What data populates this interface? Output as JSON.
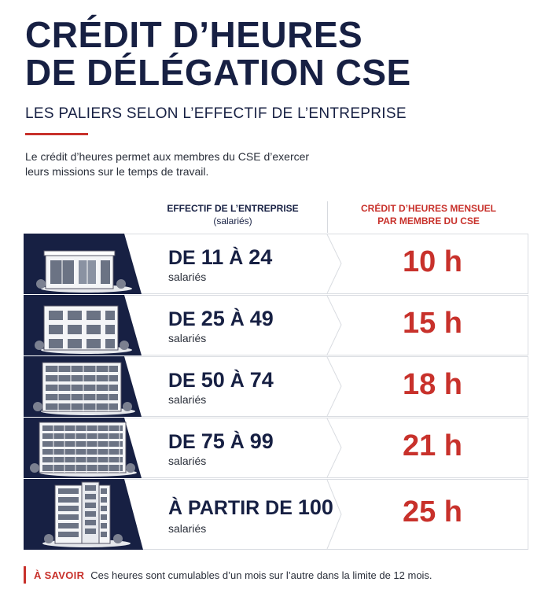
{
  "header": {
    "title_line1": "CRÉDIT D’HEURES",
    "title_line2": "DE DÉLÉGATION CSE",
    "subtitle": "LES PALIERS SELON L’EFFECTIF DE L’ENTREPRISE",
    "accent_color": "#c8312b",
    "intro_line1": "Le crédit d’heures permet aux membres du CSE d’exercer",
    "intro_line2": "leurs missions sur le temps de travail."
  },
  "columns": {
    "left_title": "EFFECTIF DE L’ENTREPRISE",
    "left_sub": "(salariés)",
    "right_line1": "CRÉDIT D’HEURES MENSUEL",
    "right_line2": "PAR MEMBRE DU CSE"
  },
  "rows": [
    {
      "pre": "DE",
      "a": "11",
      "mid": "À",
      "b": "24",
      "unit": "salariés",
      "hours": "10 h",
      "icon": "office-building-small-icon"
    },
    {
      "pre": "DE",
      "a": "25",
      "mid": "À",
      "b": "49",
      "unit": "salariés",
      "hours": "15 h",
      "icon": "office-building-medium-icon"
    },
    {
      "pre": "DE",
      "a": "50",
      "mid": "À",
      "b": "74",
      "unit": "salariés",
      "hours": "18 h",
      "icon": "office-building-large-icon"
    },
    {
      "pre": "DE",
      "a": "75",
      "mid": "À",
      "b": "99",
      "unit": "salariés",
      "hours": "21 h",
      "icon": "office-building-wide-icon"
    },
    {
      "pre": "À PARTIR DE",
      "a": "100",
      "mid": "",
      "b": "",
      "unit": "salariés",
      "hours": "25 h",
      "icon": "office-tower-icon"
    }
  ],
  "note": {
    "label": "À SAVOIR",
    "text": "Ces heures sont cumulables d’un mois sur l’autre dans la limite de 12 mois."
  }
}
